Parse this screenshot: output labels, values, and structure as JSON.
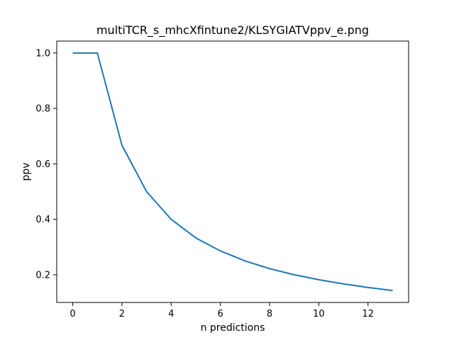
{
  "chart_data": {
    "type": "line",
    "title": "multiTCR_s_mhcXfintune2/KLSYGIATVppv_e.png",
    "xlabel": "n predictions",
    "ylabel": "ppv",
    "xlim": [
      -0.65,
      13.65
    ],
    "ylim": [
      0.1,
      1.043
    ],
    "xticks": [
      0,
      2,
      4,
      6,
      8,
      10,
      12
    ],
    "xtick_labels": [
      "0",
      "2",
      "4",
      "6",
      "8",
      "10",
      "12"
    ],
    "yticks": [
      0.2,
      0.4,
      0.6,
      0.8,
      1.0
    ],
    "ytick_labels": [
      "0.2",
      "0.4",
      "0.6",
      "0.8",
      "1.0"
    ],
    "grid": false,
    "series": [
      {
        "color": "#1f77b4",
        "x": [
          0,
          1,
          2,
          3,
          4,
          5,
          6,
          7,
          8,
          9,
          10,
          11,
          12,
          13
        ],
        "y": [
          1.0,
          1.0,
          0.667,
          0.5,
          0.4,
          0.333,
          0.286,
          0.25,
          0.222,
          0.2,
          0.182,
          0.167,
          0.154,
          0.143
        ]
      }
    ]
  }
}
